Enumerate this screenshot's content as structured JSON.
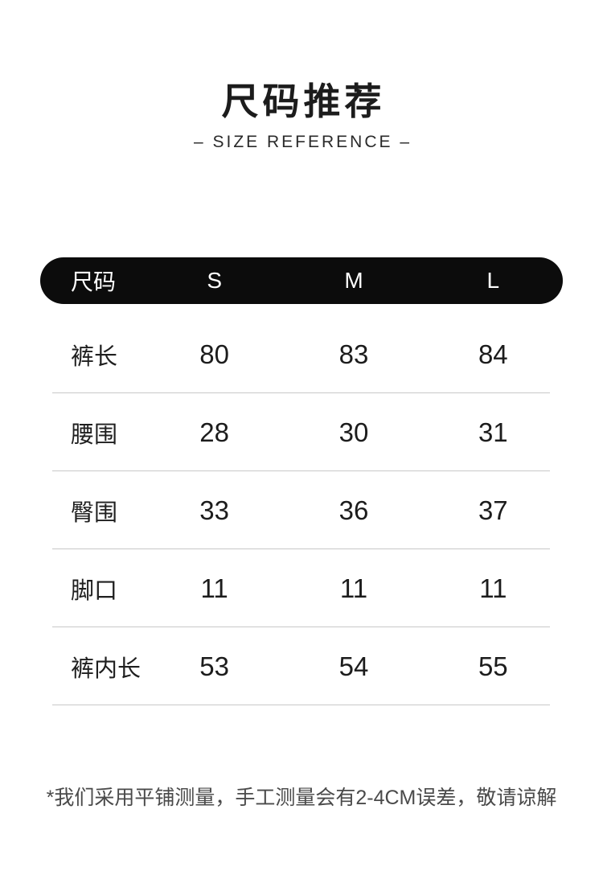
{
  "page": {
    "title": "尺码推荐",
    "subtitle": "– SIZE REFERENCE –"
  },
  "table": {
    "columns": [
      "尺码",
      "S",
      "M",
      "L"
    ],
    "rows": [
      {
        "label": "裤长",
        "values": [
          "80",
          "83",
          "84"
        ]
      },
      {
        "label": "腰围",
        "values": [
          "28",
          "30",
          "31"
        ]
      },
      {
        "label": "臀围",
        "values": [
          "33",
          "36",
          "37"
        ]
      },
      {
        "label": "脚口",
        "values": [
          "11",
          "11",
          "11"
        ]
      },
      {
        "label": "裤内长",
        "values": [
          "53",
          "54",
          "55"
        ]
      }
    ]
  },
  "footer": {
    "note": "*我们采用平铺测量，手工测量会有2-4CM误差，敬请谅解"
  },
  "colors": {
    "background": "#ffffff",
    "header_bar_bg": "#0c0c0c",
    "header_bar_text": "#ffffff",
    "body_text": "#1c1c1c",
    "divider": "#c8c8c8",
    "note_text": "#4a4a4a"
  },
  "chart_data": {
    "type": "table",
    "title": "尺码推荐",
    "subtitle": "SIZE REFERENCE",
    "columns": [
      "尺码",
      "S",
      "M",
      "L"
    ],
    "rows": [
      [
        "裤长",
        80,
        83,
        84
      ],
      [
        "腰围",
        28,
        30,
        31
      ],
      [
        "臀围",
        33,
        36,
        37
      ],
      [
        "脚口",
        11,
        11,
        11
      ],
      [
        "裤内长",
        53,
        54,
        55
      ]
    ],
    "note": "*我们采用平铺测量，手工测量会有2-4CM误差，敬请谅解"
  }
}
